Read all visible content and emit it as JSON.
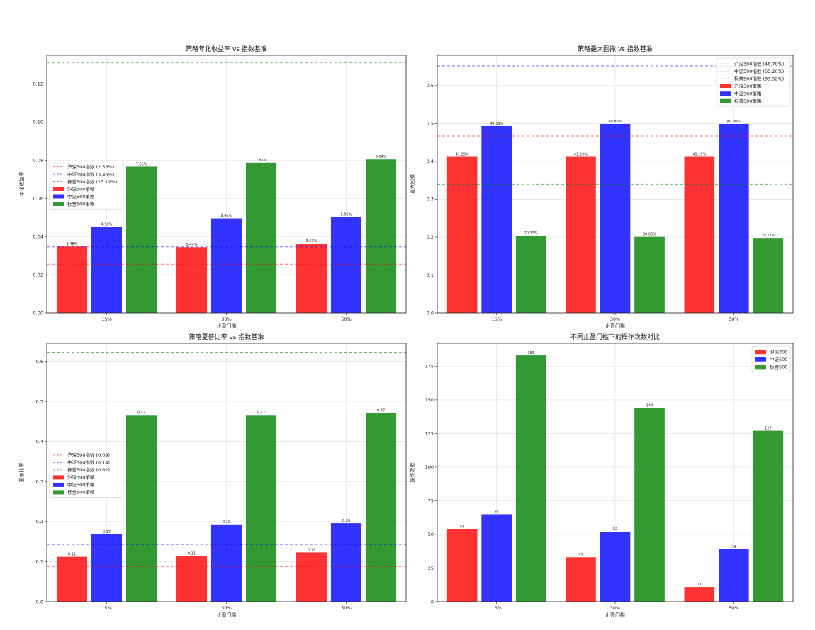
{
  "colors": {
    "hs300": "#ff0000",
    "zz500": "#0000ff",
    "sp500": "#008000"
  },
  "chart_data": [
    {
      "type": "bar",
      "title": "策略年化收益率 vs 指数基准",
      "xlabel": "止盈门槛",
      "ylabel": "年化收益率",
      "categories": [
        "15%",
        "30%",
        "50%"
      ],
      "ylim": [
        0,
        0.135
      ],
      "yticks": [
        0.0,
        0.02,
        0.04,
        0.06,
        0.08,
        0.1,
        0.12
      ],
      "tick_labels": [
        "0.00",
        "0.02",
        "0.04",
        "0.06",
        "0.08",
        "0.10",
        "0.12"
      ],
      "legend_position": "center-left",
      "series": [
        {
          "name": "沪深300策略",
          "color": "#ff0000",
          "values": [
            0.0348,
            0.0344,
            0.0363
          ],
          "labels": [
            "3.48%",
            "3.44%",
            "3.63%"
          ]
        },
        {
          "name": "中证500策略",
          "color": "#0000ff",
          "values": [
            0.045,
            0.0495,
            0.0502
          ],
          "labels": [
            "4.50%",
            "4.95%",
            "5.02%"
          ]
        },
        {
          "name": "标普500策略",
          "color": "#008000",
          "values": [
            0.0766,
            0.0787,
            0.0804
          ],
          "labels": [
            "7.66%",
            "7.87%",
            "8.04%"
          ]
        }
      ],
      "benchmarks": [
        {
          "name": "沪深300指数 (2.55%)",
          "color": "#ff0000",
          "value": 0.0255
        },
        {
          "name": "中证500指数 (3.46%)",
          "color": "#0000ff",
          "value": 0.0346
        },
        {
          "name": "标普500指数 (13.12%)",
          "color": "#008000",
          "value": 0.1312
        }
      ]
    },
    {
      "type": "bar",
      "title": "策略最大回撤 vs 指数基准",
      "xlabel": "止盈门槛",
      "ylabel": "最大回撤",
      "categories": [
        "15%",
        "30%",
        "50%"
      ],
      "ylim": [
        0,
        0.68
      ],
      "yticks": [
        0.0,
        0.1,
        0.2,
        0.3,
        0.4,
        0.5,
        0.6
      ],
      "tick_labels": [
        "0.0",
        "0.1",
        "0.2",
        "0.3",
        "0.4",
        "0.5",
        "0.6"
      ],
      "legend_position": "top-right",
      "series": [
        {
          "name": "沪深300策略",
          "color": "#ff0000",
          "values": [
            0.4119,
            0.4119,
            0.4119
          ],
          "labels": [
            "41.19%",
            "41.19%",
            "41.19%"
          ]
        },
        {
          "name": "中证500策略",
          "color": "#0000ff",
          "values": [
            0.4933,
            0.4988,
            0.4988
          ],
          "labels": [
            "49.33%",
            "49.88%",
            "49.88%"
          ]
        },
        {
          "name": "标普500策略",
          "color": "#008000",
          "values": [
            0.2033,
            0.2005,
            0.1977
          ],
          "labels": [
            "20.33%",
            "20.05%",
            "19.77%"
          ]
        }
      ],
      "benchmarks": [
        {
          "name": "沪深300指数 (46.70%)",
          "color": "#ff0000",
          "value": 0.467
        },
        {
          "name": "中证500指数 (65.20%)",
          "color": "#0000ff",
          "value": 0.652
        },
        {
          "name": "标普500指数 (33.92%)",
          "color": "#008000",
          "value": 0.3392
        }
      ]
    },
    {
      "type": "bar",
      "title": "策略夏普比率 vs 指数基准",
      "xlabel": "止盈门槛",
      "ylabel": "夏普比率",
      "categories": [
        "15%",
        "30%",
        "50%"
      ],
      "ylim": [
        0,
        0.645
      ],
      "yticks": [
        0.0,
        0.1,
        0.2,
        0.3,
        0.4,
        0.5,
        0.6
      ],
      "tick_labels": [
        "0.0",
        "0.1",
        "0.2",
        "0.3",
        "0.4",
        "0.5",
        "0.6"
      ],
      "legend_position": "center-left",
      "series": [
        {
          "name": "沪深300策略",
          "color": "#ff0000",
          "values": [
            0.112,
            0.114,
            0.123
          ],
          "labels": [
            "0.11",
            "0.11",
            "0.12"
          ]
        },
        {
          "name": "中证500策略",
          "color": "#0000ff",
          "values": [
            0.168,
            0.193,
            0.196
          ],
          "labels": [
            "0.17",
            "0.19",
            "0.20"
          ]
        },
        {
          "name": "标普500策略",
          "color": "#008000",
          "values": [
            0.466,
            0.466,
            0.471
          ],
          "labels": [
            "0.47",
            "0.47",
            "0.47"
          ]
        }
      ],
      "benchmarks": [
        {
          "name": "沪深300指数 (0.09)",
          "color": "#ff0000",
          "value": 0.088
        },
        {
          "name": "中证500指数 (0.14)",
          "color": "#0000ff",
          "value": 0.143
        },
        {
          "name": "标普500指数 (0.62)",
          "color": "#008000",
          "value": 0.623
        }
      ]
    },
    {
      "type": "bar",
      "title": "不同止盈门槛下的操作次数对比",
      "xlabel": "止盈门槛",
      "ylabel": "操作次数",
      "categories": [
        "15%",
        "30%",
        "50%"
      ],
      "ylim": [
        0,
        192
      ],
      "yticks": [
        0,
        25,
        50,
        75,
        100,
        125,
        150,
        175
      ],
      "tick_labels": [
        "0",
        "25",
        "50",
        "75",
        "100",
        "125",
        "150",
        "175"
      ],
      "legend_position": "top-right",
      "series": [
        {
          "name": "沪深300",
          "color": "#ff0000",
          "values": [
            54,
            33,
            11
          ],
          "labels": [
            "54",
            "33",
            "11"
          ]
        },
        {
          "name": "中证500",
          "color": "#0000ff",
          "values": [
            65,
            52,
            39
          ],
          "labels": [
            "65",
            "52",
            "39"
          ]
        },
        {
          "name": "标普500",
          "color": "#008000",
          "values": [
            183,
            144,
            127
          ],
          "labels": [
            "183",
            "144",
            "127"
          ]
        }
      ],
      "benchmarks": []
    }
  ]
}
